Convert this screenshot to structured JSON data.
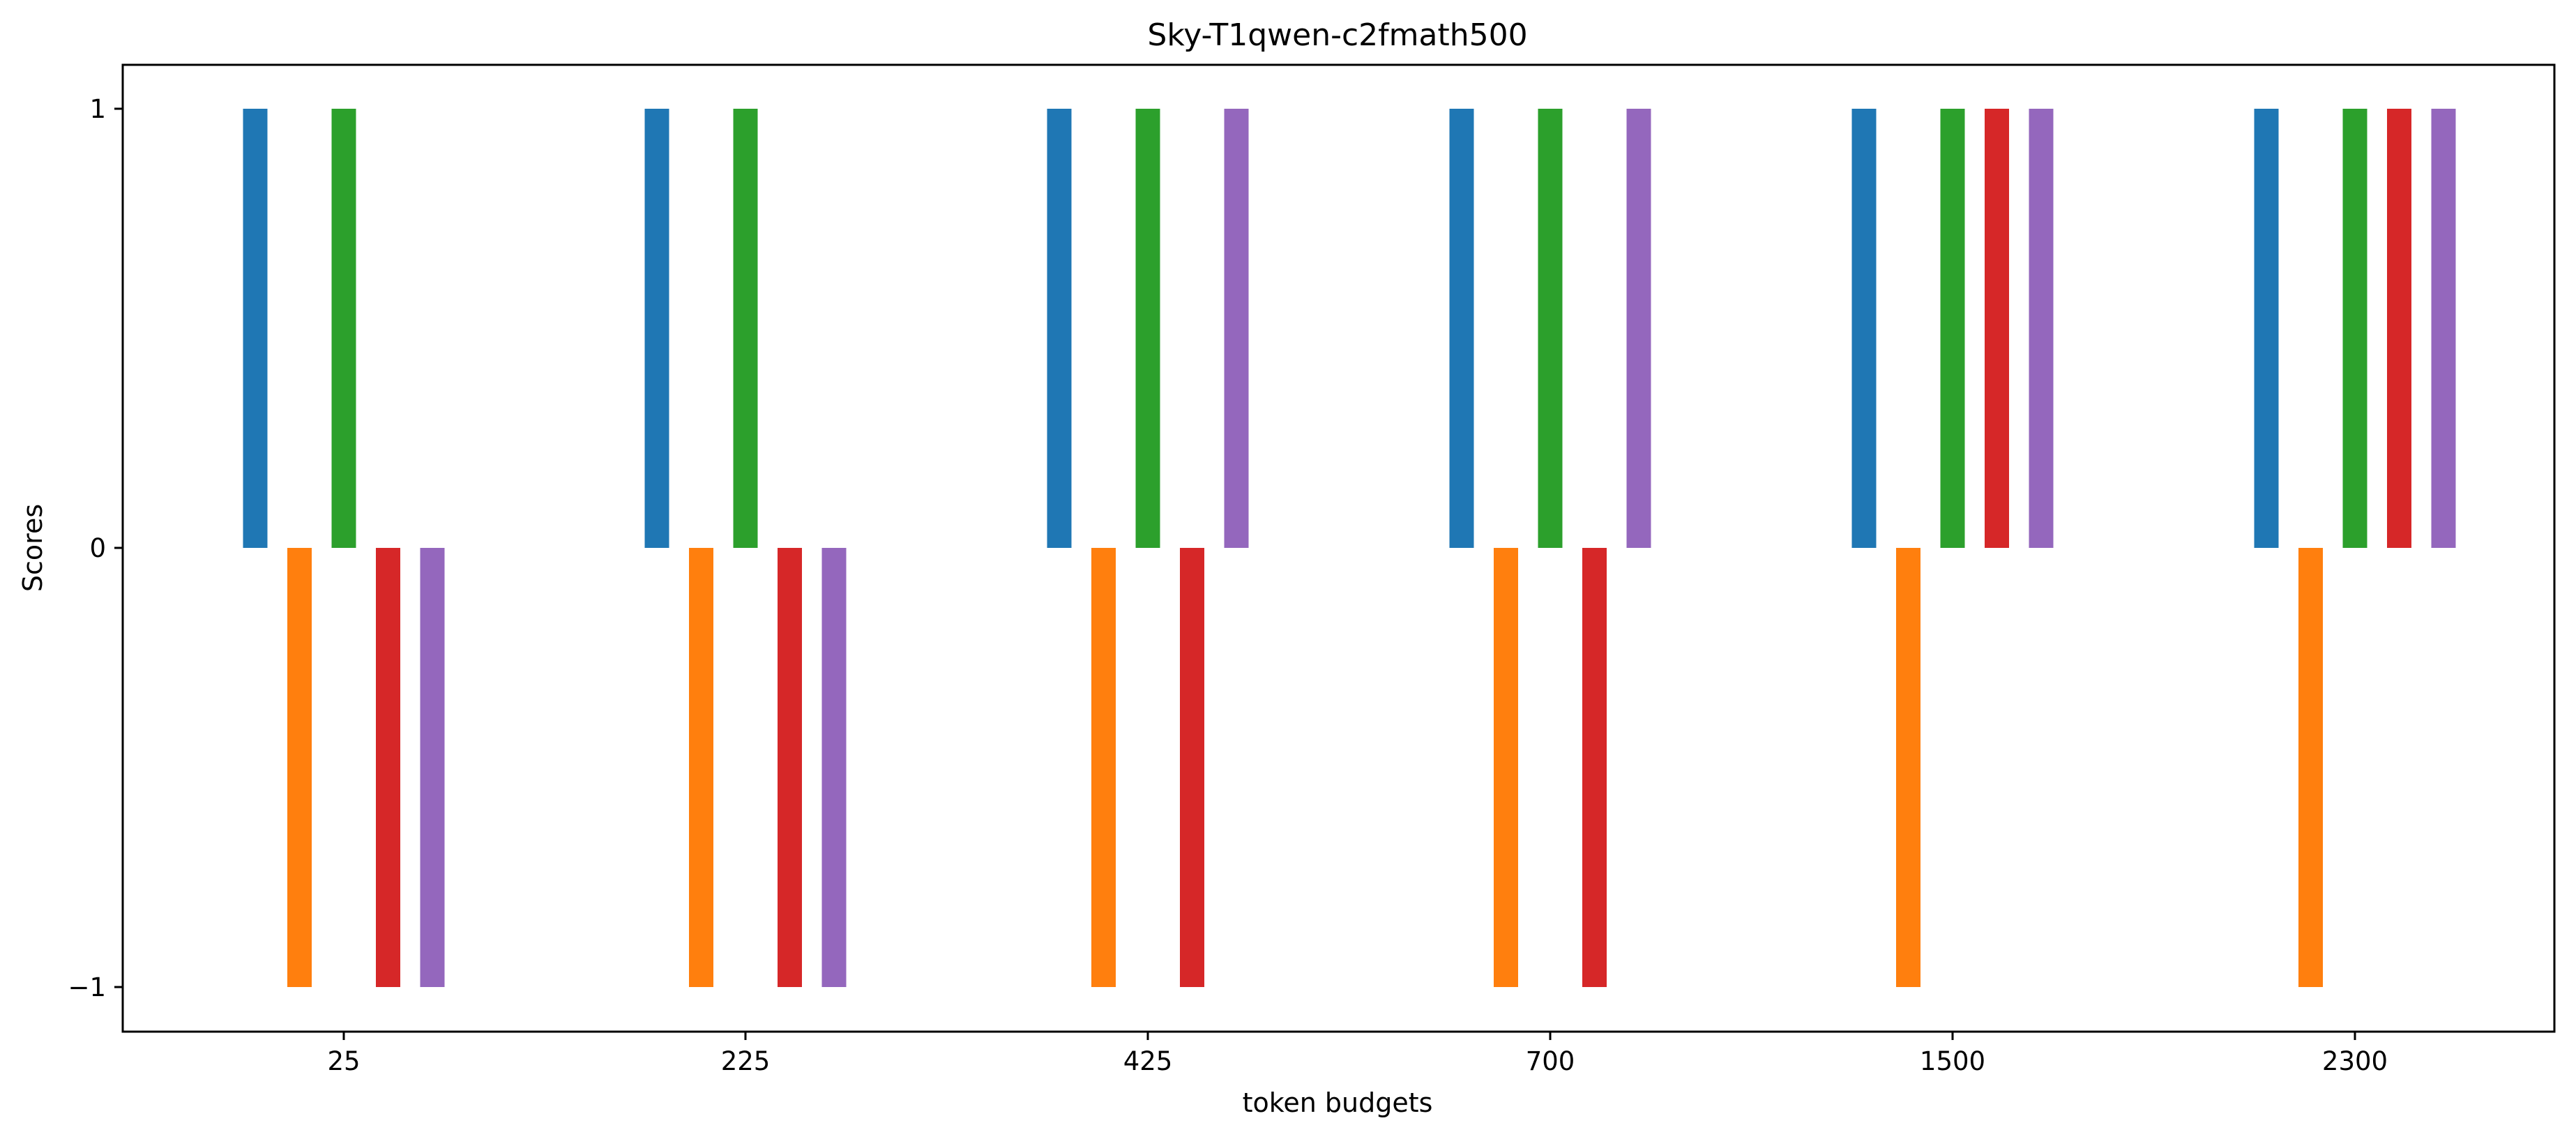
{
  "chart_data": {
    "type": "bar",
    "title": "Sky-T1qwen-c2fmath500",
    "xlabel": "token budgets",
    "ylabel": "Scores",
    "categories": [
      "25",
      "225",
      "425",
      "700",
      "1500",
      "2300"
    ],
    "yticks": [
      {
        "value": -1,
        "label": "−1"
      },
      {
        "value": 0,
        "label": "0"
      },
      {
        "value": 1,
        "label": "1"
      }
    ],
    "ylim": [
      -1.1,
      1.1
    ],
    "grid": false,
    "legend": "none",
    "series": [
      {
        "color": "#1f77b4",
        "values": [
          1,
          1,
          1,
          1,
          1,
          1
        ]
      },
      {
        "color": "#ff7f0e",
        "values": [
          -1,
          -1,
          -1,
          -1,
          -1,
          -1
        ]
      },
      {
        "color": "#2ca02c",
        "values": [
          1,
          1,
          1,
          1,
          1,
          1
        ]
      },
      {
        "color": "#d62728",
        "values": [
          -1,
          -1,
          -1,
          -1,
          1,
          1
        ]
      },
      {
        "color": "#9467bd",
        "values": [
          -1,
          -1,
          1,
          1,
          1,
          1
        ]
      }
    ]
  }
}
